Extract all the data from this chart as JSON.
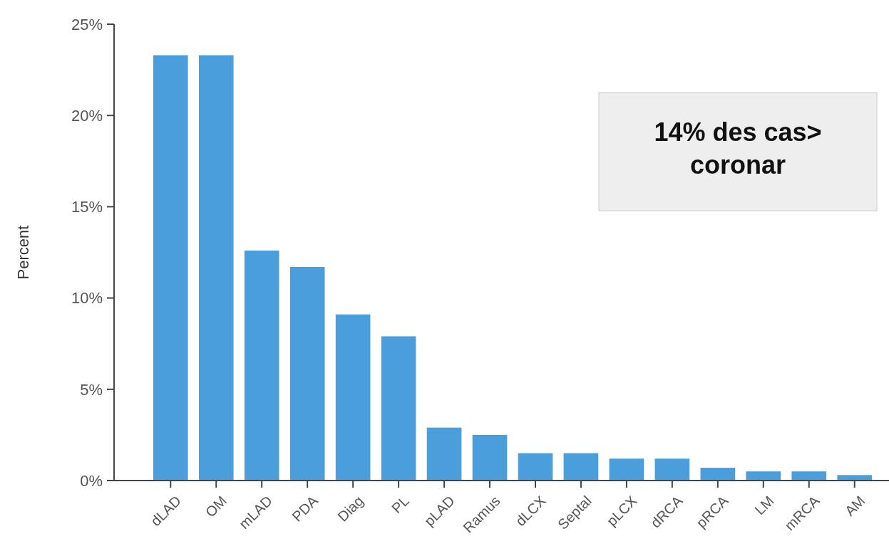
{
  "chart_data": {
    "type": "bar",
    "ylabel": "Percent",
    "categories": [
      "dLAD",
      "OM",
      "mLAD",
      "PDA",
      "Diag",
      "PL",
      "pLAD",
      "Ramus",
      "dLCX",
      "Septal",
      "pLCX",
      "dRCA",
      "pRCA",
      "LM",
      "mRCA",
      "AM"
    ],
    "values": [
      23.3,
      23.3,
      12.6,
      11.7,
      9.1,
      7.9,
      2.9,
      2.5,
      1.5,
      1.5,
      1.2,
      1.2,
      0.7,
      0.5,
      0.5,
      0.3
    ],
    "color": "#4a9edb",
    "ylim": [
      0,
      25
    ],
    "yticks": [
      {
        "value": 0,
        "label": "0%"
      },
      {
        "value": 5,
        "label": "5%"
      },
      {
        "value": 10,
        "label": "10%"
      },
      {
        "value": 15,
        "label": "15%"
      },
      {
        "value": 20,
        "label": "20%"
      },
      {
        "value": 25,
        "label": "25%"
      }
    ],
    "grid": false,
    "annotations": [
      "14% des cas>\ncoronar"
    ]
  }
}
